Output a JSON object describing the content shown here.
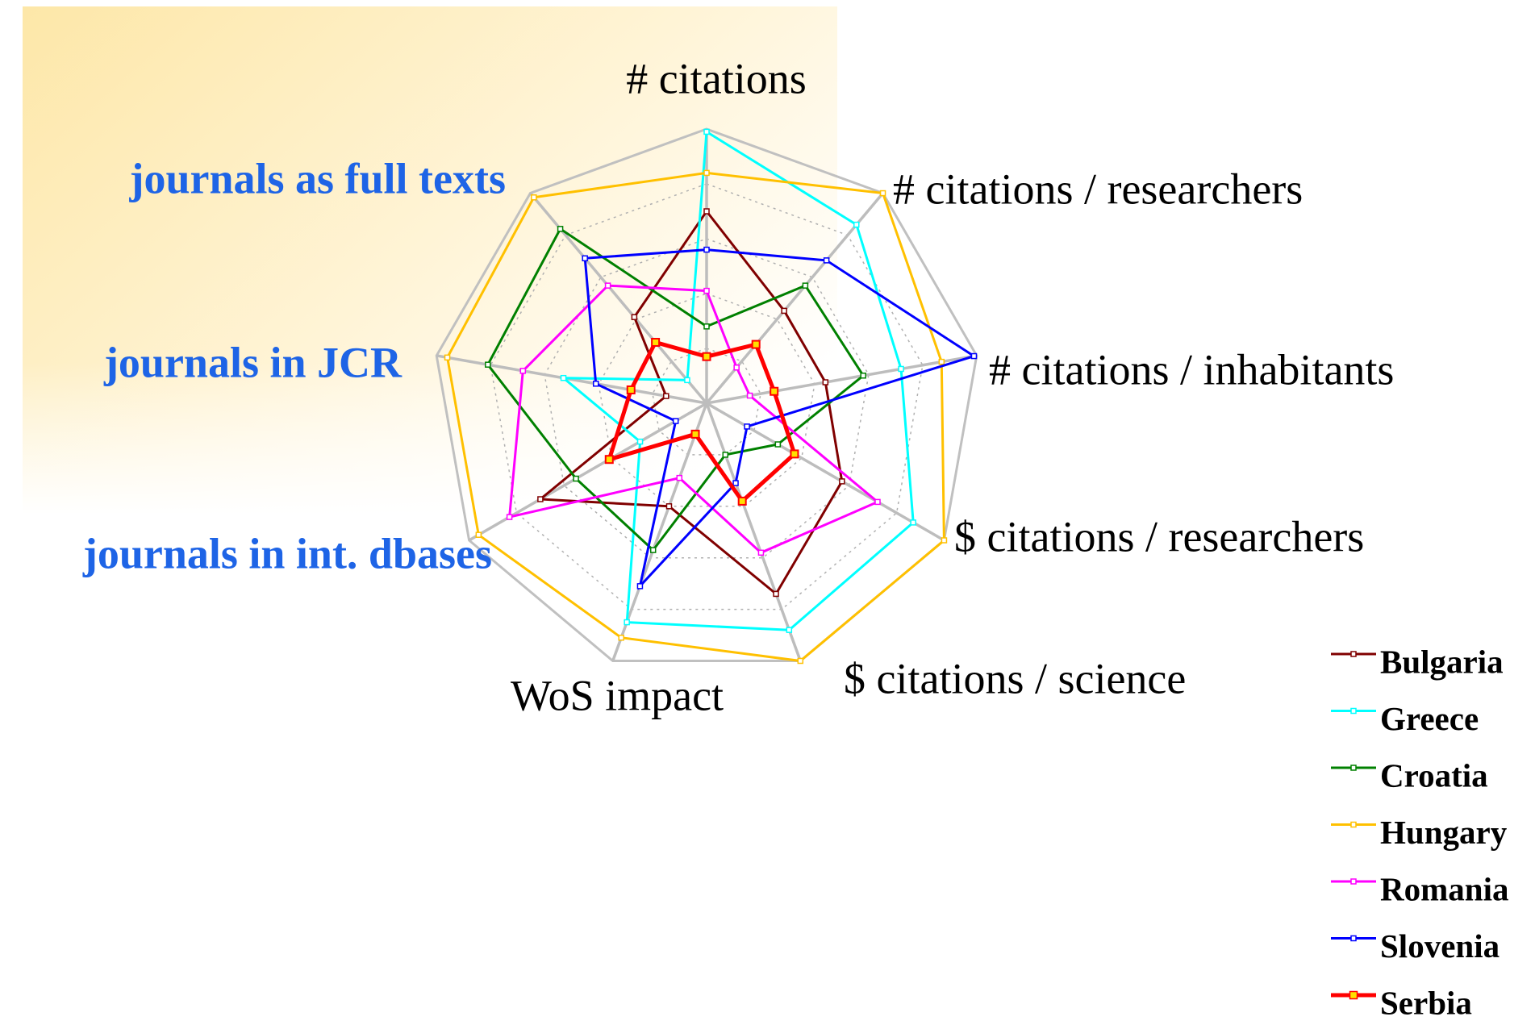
{
  "chart_data": {
    "type": "radar",
    "categories": [
      "# citations",
      "# citations / researchers",
      "# citations / inhabitants",
      "$ citations / researchers",
      "$ citations / science",
      "WoS impact",
      "journals in int. dbases",
      "journals in JCR",
      "journals as full texts"
    ],
    "rlim": [
      0,
      100
    ],
    "grid": true,
    "legend": "right",
    "series": [
      {
        "name": "Bulgaria",
        "color": "#800000",
        "values": [
          70,
          44,
          44,
          57,
          74,
          40,
          70,
          15,
          41
        ]
      },
      {
        "name": "Greece",
        "color": "#00ffff",
        "values": [
          99,
          85,
          72,
          87,
          88,
          85,
          28,
          53,
          11
        ]
      },
      {
        "name": "Croatia",
        "color": "#008000",
        "values": [
          28,
          56,
          58,
          30,
          20,
          57,
          55,
          81,
          83
        ]
      },
      {
        "name": "Hungary",
        "color": "#ffc000",
        "values": [
          84,
          100,
          87,
          100,
          100,
          91,
          96,
          96,
          98
        ]
      },
      {
        "name": "Romania",
        "color": "#ff00ff",
        "values": [
          41,
          17,
          16,
          72,
          58,
          29,
          83,
          68,
          56
        ]
      },
      {
        "name": "Slovenia",
        "color": "#0000ff",
        "values": [
          56,
          68,
          99,
          17,
          31,
          71,
          13,
          41,
          69
        ]
      },
      {
        "name": "Serbia",
        "color": "#ff0000",
        "values": [
          17,
          28,
          25,
          37,
          38,
          12,
          41,
          28,
          29
        ]
      }
    ]
  }
}
